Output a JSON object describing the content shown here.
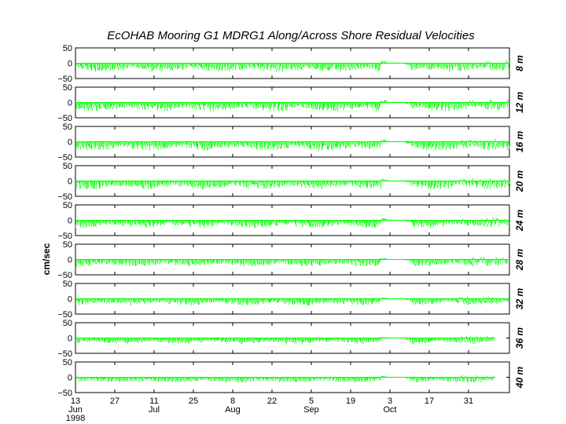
{
  "chart_data": {
    "type": "line",
    "chart_kind": "stick-plot",
    "title": "EcOHAB Mooring G1   MDRG1   Along/Across Shore Residual Velocities",
    "ylabel": "cm/sec",
    "ylim": [
      -50,
      50
    ],
    "y_ticks": [
      "50",
      "0",
      "−50"
    ],
    "x_ticks": [
      {
        "day": "13",
        "month": "Jun",
        "year": "1998"
      },
      {
        "day": "27",
        "month": "",
        "year": ""
      },
      {
        "day": "11",
        "month": "Jul",
        "year": ""
      },
      {
        "day": "25",
        "month": "",
        "year": ""
      },
      {
        "day": "8",
        "month": "Aug",
        "year": ""
      },
      {
        "day": "22",
        "month": "",
        "year": ""
      },
      {
        "day": "5",
        "month": "Sep",
        "year": ""
      },
      {
        "day": "19",
        "month": "",
        "year": ""
      },
      {
        "day": "3",
        "month": "Oct",
        "year": ""
      },
      {
        "day": "17",
        "month": "",
        "year": ""
      },
      {
        "day": "31",
        "month": "",
        "year": ""
      }
    ],
    "x_range": [
      "1998-06-13",
      "1998-11-13"
    ],
    "series_color": "#00ff00",
    "panels": [
      {
        "depth": "8 m",
        "typical_amplitude": 30,
        "end_date": "1998-11-13"
      },
      {
        "depth": "12 m",
        "typical_amplitude": 30,
        "end_date": "1998-11-13"
      },
      {
        "depth": "16 m",
        "typical_amplitude": 30,
        "end_date": "1998-11-13"
      },
      {
        "depth": "20 m",
        "typical_amplitude": 28,
        "end_date": "1998-11-13"
      },
      {
        "depth": "24 m",
        "typical_amplitude": 26,
        "end_date": "1998-11-13"
      },
      {
        "depth": "28 m",
        "typical_amplitude": 24,
        "end_date": "1998-11-13"
      },
      {
        "depth": "32 m",
        "typical_amplitude": 22,
        "end_date": "1998-11-13"
      },
      {
        "depth": "36 m",
        "typical_amplitude": 20,
        "end_date": "1998-11-08"
      },
      {
        "depth": "40 m",
        "typical_amplitude": 18,
        "end_date": "1998-11-08"
      }
    ]
  }
}
